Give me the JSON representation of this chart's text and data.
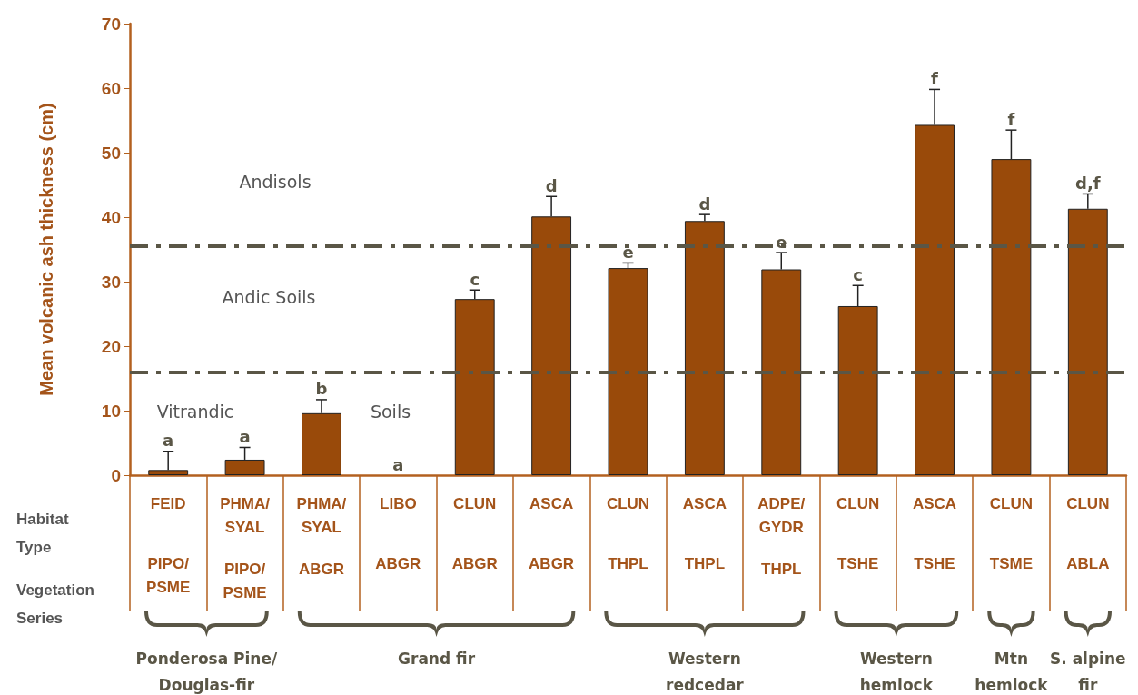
{
  "chart_data": {
    "type": "bar",
    "ylabel": "Mean volcanic ash thickness (cm)",
    "categories": [
      "FEID\nPIPO/PSME",
      "PHMA/SYAL\nPIPO/PSME",
      "PHMA/SYAL\nABGR",
      "LIBO\nABGR",
      "CLUN\nABGR",
      "ASCA\nABGR",
      "CLUN\nTHPL",
      "ASCA\nTHPL",
      "ADPE/GYDR\nTHPL",
      "CLUN\nTSHE",
      "ASCA\nTSHE",
      "CLUN\nTSME",
      "CLUN\nABLA"
    ],
    "values": [
      0.8,
      2.4,
      9.6,
      0,
      27.3,
      40.1,
      32.1,
      39.4,
      31.9,
      26.2,
      54.3,
      49.0,
      41.3
    ],
    "color": "#994a0a",
    "errors": [
      [
        0.8,
        3.7
      ],
      [
        2.4,
        4.3
      ],
      [
        9.6,
        11.7
      ],
      null,
      [
        27.3,
        28.7
      ],
      [
        40.1,
        43.2
      ],
      [
        32.1,
        32.9
      ],
      [
        39.4,
        40.4
      ],
      [
        31.9,
        34.5
      ],
      [
        26.2,
        29.4
      ],
      [
        54.3,
        59.8
      ],
      [
        49.0,
        53.5
      ],
      [
        41.3,
        43.6
      ]
    ],
    "value_labels": [
      "a",
      "a",
      "b",
      "a",
      "c",
      "d",
      "e",
      "d",
      "e",
      "c",
      "f",
      "f",
      "d,f"
    ],
    "ylim": [
      0,
      70
    ],
    "yticks": [
      0,
      10,
      20,
      30,
      40,
      50,
      60,
      70
    ],
    "grid": false,
    "ref_lines": [
      {
        "axis": "y",
        "value": 16,
        "color": "#5a5646",
        "line_style": "dashed"
      },
      {
        "axis": "y",
        "value": 35.5,
        "color": "#5a5646",
        "line_style": "dashed"
      }
    ],
    "annotations": [
      "Andisols",
      "Andic Soils",
      "Vitrandic",
      "Soils",
      "Habitat\nType",
      "Vegetation\nSeries",
      "Ponderosa Pine/\nDouglas-fir",
      "Grand fir",
      "Western\nredcedar",
      "Western\nhemlock",
      "Mtn\nhemlock",
      "S. alpine\nfir"
    ]
  }
}
